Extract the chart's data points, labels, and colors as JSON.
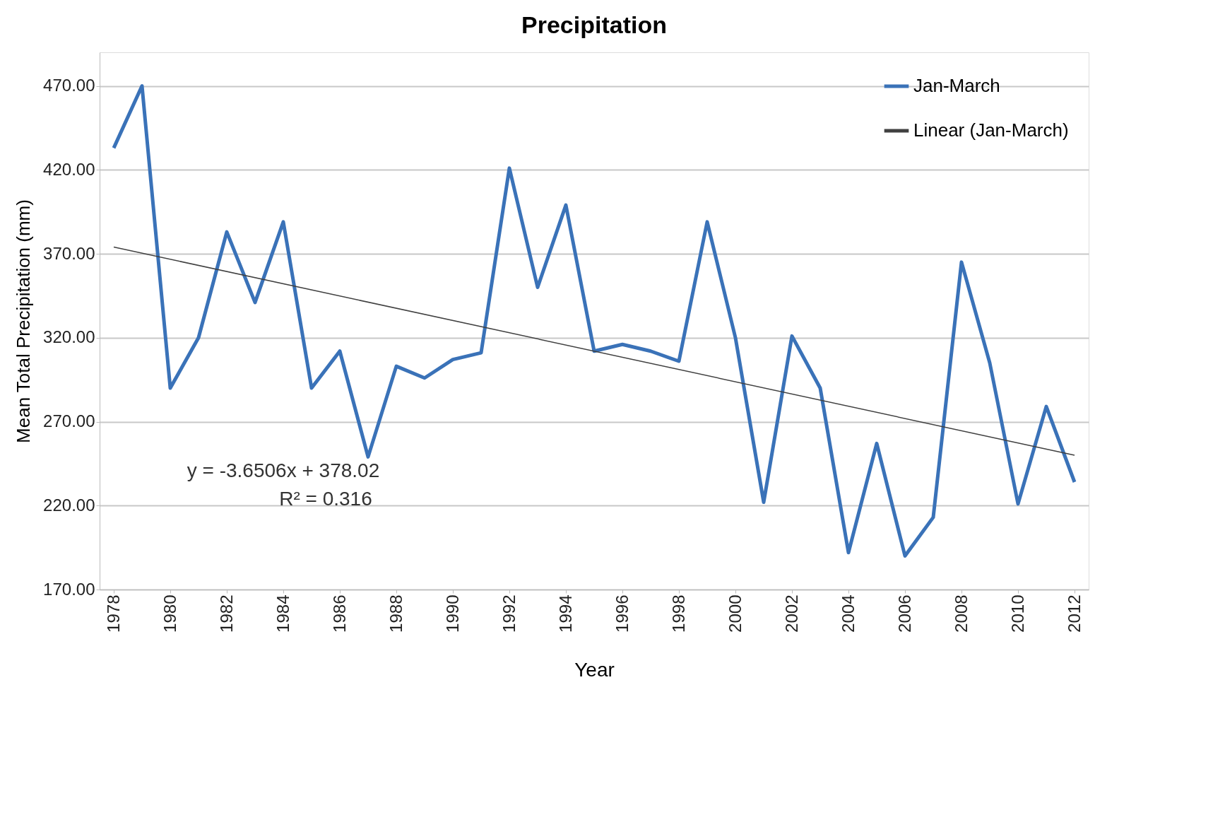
{
  "chart_data": {
    "type": "line",
    "title": "Precipitation",
    "xlabel": "Year",
    "ylabel": "Mean Total Precipitation (mm)",
    "x": [
      1978,
      1979,
      1980,
      1981,
      1982,
      1983,
      1984,
      1985,
      1986,
      1987,
      1988,
      1989,
      1990,
      1991,
      1992,
      1993,
      1994,
      1995,
      1996,
      1997,
      1998,
      1999,
      2000,
      2001,
      2002,
      2003,
      2004,
      2005,
      2006,
      2007,
      2008,
      2009,
      2010,
      2011,
      2012
    ],
    "series": [
      {
        "name": "Jan-March",
        "color": "#3a72b8",
        "values": [
          433,
          470,
          290,
          320,
          383,
          341,
          389,
          290,
          312,
          249,
          303,
          296,
          307,
          311,
          421,
          350,
          399,
          312,
          316,
          312,
          306,
          389,
          320,
          222,
          321,
          290,
          192,
          257,
          190,
          213,
          365,
          305,
          221,
          279,
          234
        ]
      },
      {
        "name": "Linear (Jan-March)",
        "type": "line",
        "color": "#404040",
        "x": [
          1978,
          2012
        ],
        "values": [
          374,
          250
        ]
      }
    ],
    "xlim": [
      1977.5,
      2012.5
    ],
    "xticks": [
      1978,
      1980,
      1982,
      1984,
      1986,
      1988,
      1990,
      1992,
      1994,
      1996,
      1998,
      2000,
      2002,
      2004,
      2006,
      2008,
      2010,
      2012
    ],
    "ylim": [
      170,
      490
    ],
    "yticks": [
      {
        "value": 170,
        "label": "170.00"
      },
      {
        "value": 220,
        "label": "220.00"
      },
      {
        "value": 270,
        "label": "270.00"
      },
      {
        "value": 320,
        "label": "320.00"
      },
      {
        "value": 370,
        "label": "370.00"
      },
      {
        "value": 420,
        "label": "420.00"
      },
      {
        "value": 470,
        "label": "470.00"
      }
    ],
    "annotations": [
      "y = -3.6506x + 378.02",
      "R² = 0.316"
    ],
    "grid": "y",
    "legend": "top right",
    "marker": "none",
    "line_style": "solid"
  }
}
